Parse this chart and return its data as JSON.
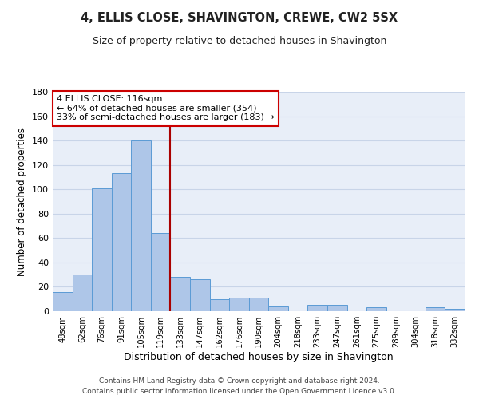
{
  "title1": "4, ELLIS CLOSE, SHAVINGTON, CREWE, CW2 5SX",
  "title2": "Size of property relative to detached houses in Shavington",
  "xlabel": "Distribution of detached houses by size in Shavington",
  "ylabel": "Number of detached properties",
  "bar_labels": [
    "48sqm",
    "62sqm",
    "76sqm",
    "91sqm",
    "105sqm",
    "119sqm",
    "133sqm",
    "147sqm",
    "162sqm",
    "176sqm",
    "190sqm",
    "204sqm",
    "218sqm",
    "233sqm",
    "247sqm",
    "261sqm",
    "275sqm",
    "289sqm",
    "304sqm",
    "318sqm",
    "332sqm"
  ],
  "bar_values": [
    16,
    30,
    101,
    113,
    140,
    64,
    28,
    26,
    10,
    11,
    11,
    4,
    0,
    5,
    5,
    0,
    3,
    0,
    0,
    3,
    2
  ],
  "bar_color": "#aec6e8",
  "bar_edge_color": "#5b9bd5",
  "vline_x_index": 5,
  "vline_color": "#aa0000",
  "annotation_title": "4 ELLIS CLOSE: 116sqm",
  "annotation_line1": "← 64% of detached houses are smaller (354)",
  "annotation_line2": "33% of semi-detached houses are larger (183) →",
  "annotation_box_color": "#ffffff",
  "annotation_box_edge": "#cc0000",
  "ylim": [
    0,
    180
  ],
  "yticks": [
    0,
    20,
    40,
    60,
    80,
    100,
    120,
    140,
    160,
    180
  ],
  "footer1": "Contains HM Land Registry data © Crown copyright and database right 2024.",
  "footer2": "Contains public sector information licensed under the Open Government Licence v3.0.",
  "bg_color": "#e8eef8",
  "grid_color": "#c8d4e8"
}
